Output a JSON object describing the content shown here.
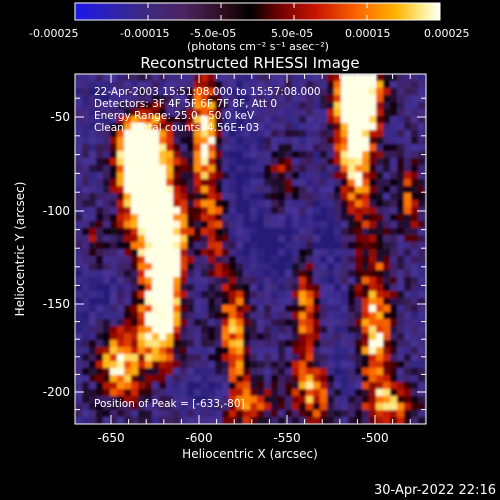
{
  "colorbar": {
    "ticks": [
      "-0.00025",
      "-0.00015",
      "-5.0e-05",
      "5.0e-05",
      "0.00015",
      "0.00025"
    ],
    "unit_label": "(photons cm⁻² s⁻¹ asec⁻²)"
  },
  "title": "Reconstructed RHESSI Image",
  "annotations": {
    "time_range": "22-Apr-2003 15:51:08.000 to 15:57:08.000",
    "detectors": "Detectors: 3F 4F 5F 6F 7F 8F, Att 0",
    "energy": "Energy Range: 25.0 - 50.0 keV",
    "clean": "Clean    Total counts: 4.56E+03",
    "peak": "Position of Peak = [-633,-80]"
  },
  "axes": {
    "xlabel": "Heliocentric X (arcsec)",
    "ylabel": "Heliocentric Y (arcsec)",
    "xticks": [
      "-650",
      "-600",
      "-550",
      "-500"
    ],
    "yticks": [
      "-50",
      "-100",
      "-150",
      "-200"
    ]
  },
  "footer": {
    "timestamp": "30-Apr-2022 22:16"
  }
}
